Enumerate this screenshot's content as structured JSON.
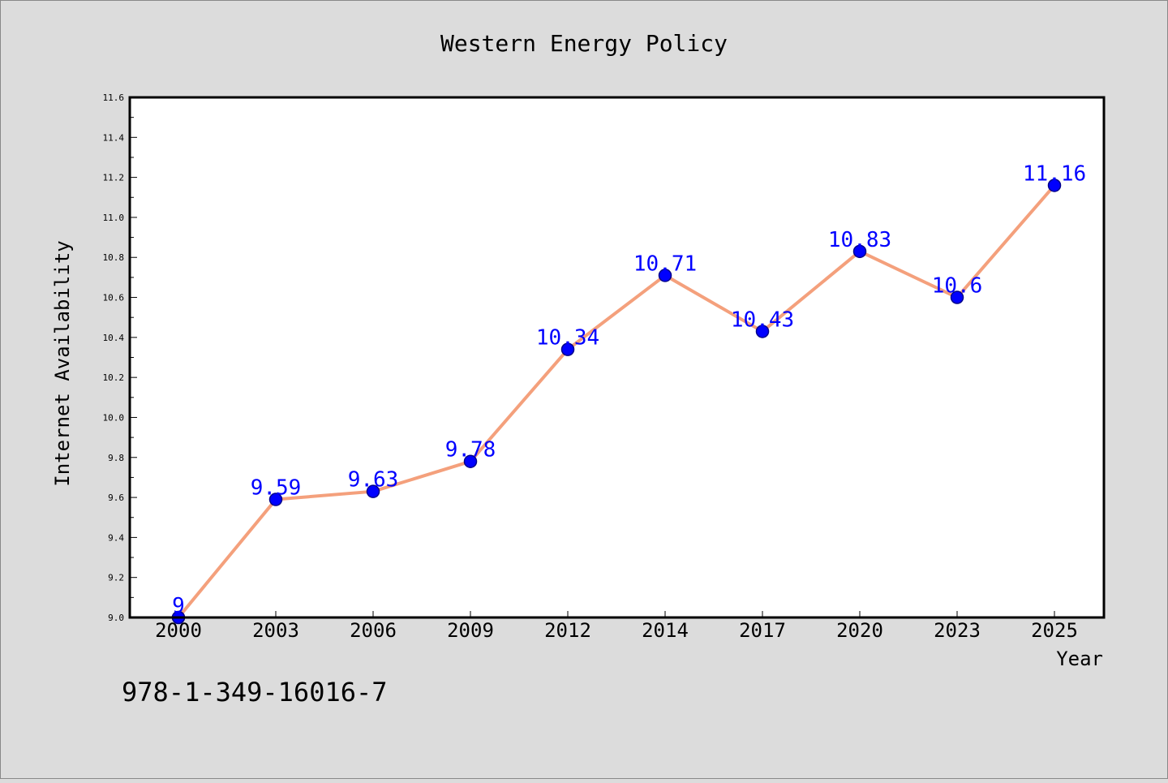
{
  "page": {
    "background": "#dcdcdc",
    "plot_background": "#ffffff",
    "footer_text": "978-1-349-16016-7"
  },
  "chart_data": {
    "type": "line",
    "title": "Western Energy Policy",
    "xlabel": "Year",
    "ylabel": "Internet Availability",
    "categories": [
      "2000",
      "2003",
      "2006",
      "2009",
      "2012",
      "2014",
      "2017",
      "2020",
      "2023",
      "2025"
    ],
    "series": [
      {
        "values": [
          9,
          9.59,
          9.63,
          9.78,
          10.34,
          10.71,
          10.43,
          10.83,
          10.6,
          11.16
        ],
        "data_labels": [
          "9",
          "9.59",
          "9.63",
          "9.78",
          "10.34",
          "10.71",
          "10.43",
          "10.83",
          "10.6",
          "11.16"
        ],
        "line_color": "#f4a07c",
        "marker_color": "#0000ff",
        "marker_edge_color": "#00008b",
        "label_color": "#0000ff"
      }
    ],
    "ylim": [
      9.0,
      11.6
    ],
    "yticks": [
      "9.0",
      "9.2",
      "9.4",
      "9.6",
      "9.8",
      "10.0",
      "10.2",
      "10.4",
      "10.6",
      "10.8",
      "11.0",
      "11.2",
      "11.4",
      "11.6"
    ],
    "grid": false,
    "legend": "none"
  }
}
